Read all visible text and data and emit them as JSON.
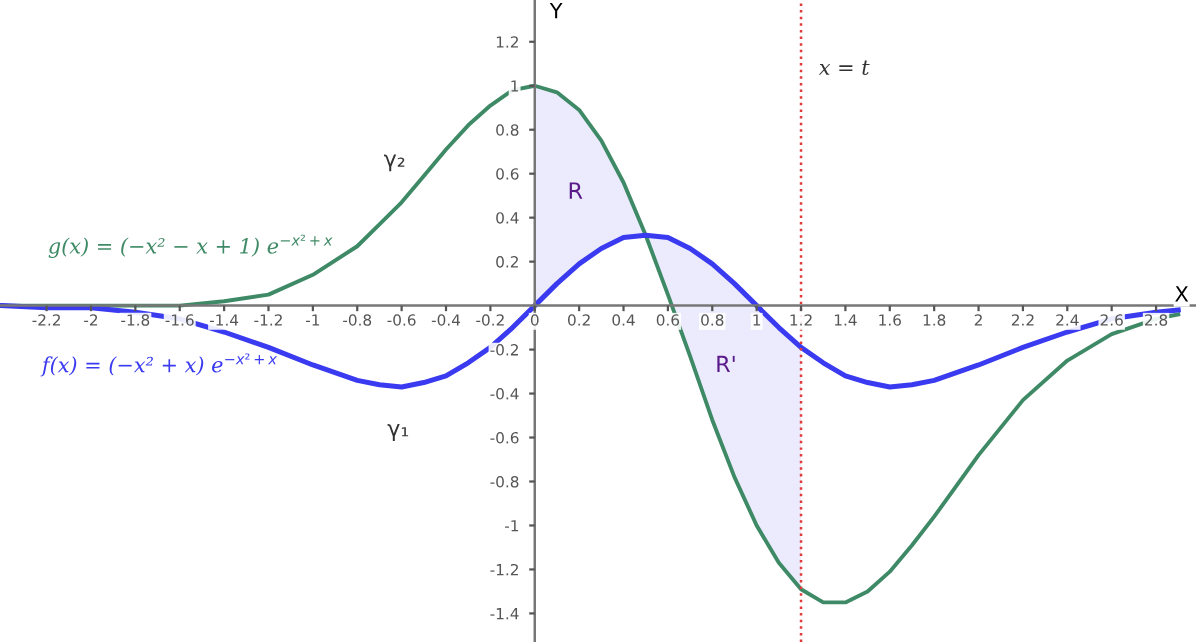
{
  "chart_data": {
    "type": "line",
    "xlabel": "X",
    "ylabel": "Y",
    "xlim": [
      -2.41,
      2.98
    ],
    "ylim": [
      -1.53,
      1.39
    ],
    "xticks": [
      -2.2,
      -2,
      -1.8,
      -1.6,
      -1.4,
      -1.2,
      -1,
      -0.8,
      -0.6,
      -0.4,
      -0.2,
      0,
      0.2,
      0.4,
      0.6,
      0.8,
      1,
      1.2,
      1.4,
      1.6,
      1.8,
      2,
      2.2,
      2.4,
      2.6,
      2.8
    ],
    "yticks": [
      -1.4,
      -1.2,
      -1,
      -0.8,
      -0.6,
      -0.4,
      -0.2,
      0.2,
      0.4,
      0.6,
      0.8,
      1,
      1.2
    ],
    "grid": false,
    "legend": "left",
    "series": [
      {
        "name": "g(x) = (−x² − x + 1) e$^{−x²+x}$",
        "color": "#3f8a66",
        "x": [
          -2.4,
          -2.2,
          -2.0,
          -1.8,
          -1.6,
          -1.4,
          -1.2,
          -1.0,
          -0.8,
          -0.7,
          -0.6,
          -0.5,
          -0.4,
          -0.3,
          -0.2,
          -0.1,
          0,
          0.1,
          0.2,
          0.3,
          0.4,
          0.5,
          0.6,
          0.7,
          0.8,
          0.9,
          1.0,
          1.1,
          1.2,
          1.3,
          1.4,
          1.5,
          1.6,
          1.7,
          1.8,
          2.0,
          2.2,
          2.4,
          2.6,
          2.8,
          2.9
        ],
        "values": [
          0,
          0,
          0,
          0,
          0,
          0.02,
          0.05,
          0.14,
          0.27,
          0.37,
          0.47,
          0.59,
          0.71,
          0.82,
          0.91,
          0.98,
          1.0,
          0.97,
          0.89,
          0.75,
          0.56,
          0.32,
          0.05,
          -0.23,
          -0.52,
          -0.78,
          -1.0,
          -1.17,
          -1.29,
          -1.35,
          -1.35,
          -1.3,
          -1.21,
          -1.09,
          -0.96,
          -0.68,
          -0.43,
          -0.25,
          -0.13,
          -0.06,
          -0.04
        ]
      },
      {
        "name": "f(x) = (−x² + x) e$^{−x²+x}$",
        "color": "#3a3af0",
        "x": [
          -2.4,
          -2.2,
          -2.0,
          -1.8,
          -1.6,
          -1.4,
          -1.2,
          -1.0,
          -0.8,
          -0.7,
          -0.6,
          -0.5,
          -0.4,
          -0.3,
          -0.2,
          -0.1,
          0,
          0.1,
          0.2,
          0.3,
          0.4,
          0.5,
          0.6,
          0.7,
          0.8,
          0.9,
          1.0,
          1.1,
          1.2,
          1.3,
          1.4,
          1.5,
          1.6,
          1.7,
          1.8,
          2.0,
          2.2,
          2.4,
          2.6,
          2.8,
          2.9
        ],
        "values": [
          0,
          -0.01,
          -0.01,
          -0.03,
          -0.06,
          -0.12,
          -0.19,
          -0.27,
          -0.34,
          -0.36,
          -0.37,
          -0.35,
          -0.32,
          -0.26,
          -0.19,
          -0.1,
          0,
          0.1,
          0.19,
          0.26,
          0.31,
          0.32,
          0.31,
          0.26,
          0.19,
          0.1,
          0,
          -0.1,
          -0.19,
          -0.26,
          -0.32,
          -0.35,
          -0.37,
          -0.36,
          -0.34,
          -0.27,
          -0.19,
          -0.12,
          -0.06,
          -0.03,
          -0.02
        ],
        "lower": [
          null,
          null,
          null,
          null,
          null,
          null,
          null,
          null,
          null,
          null,
          null,
          null,
          null,
          null,
          null,
          null,
          0,
          0.1,
          0.19,
          0.26,
          0.31,
          0.32,
          0.31,
          0.26,
          0.19,
          0.1,
          0,
          -0.1,
          -0.19,
          null,
          null,
          null,
          null,
          null,
          null,
          null,
          null,
          null,
          null,
          null,
          null
        ],
        "upper": [
          null,
          null,
          null,
          null,
          null,
          null,
          null,
          null,
          null,
          null,
          null,
          null,
          null,
          null,
          null,
          null,
          1.0,
          0.97,
          0.89,
          0.75,
          0.56,
          0.32,
          0.05,
          -0.23,
          -0.52,
          -0.78,
          -1.0,
          -1.17,
          -1.29,
          null,
          null,
          null,
          null,
          null,
          null,
          null,
          null,
          null,
          null,
          null,
          null
        ]
      }
    ],
    "ref_lines": [
      {
        "axis": "x",
        "value": 1.2,
        "label": "x = t",
        "color": "#e03a3a",
        "line_style": "dotted"
      }
    ],
    "annotations": [
      "γ₂",
      "γ₁",
      "R",
      "R'"
    ]
  }
}
